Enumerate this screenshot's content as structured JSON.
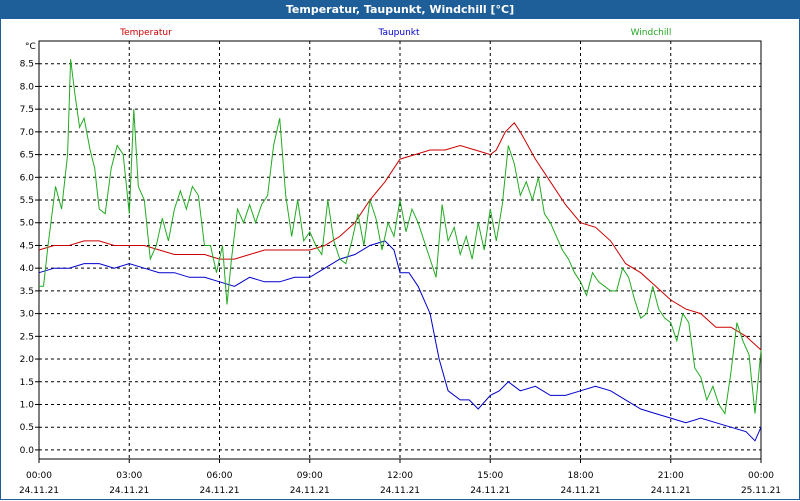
{
  "window": {
    "title": "Temperatur, Taupunkt, Windchill [°C]"
  },
  "chart_data": {
    "type": "line",
    "title": "Temperatur, Taupunkt, Windchill [°C]",
    "ylabel": "°C",
    "xlabel": "",
    "ylim": [
      -0.2,
      9.0
    ],
    "xlim": [
      0,
      24
    ],
    "grid": true,
    "yticks": [
      "0.0",
      "0.5",
      "1.0",
      "1.5",
      "2.0",
      "2.5",
      "3.0",
      "3.5",
      "4.0",
      "4.5",
      "5.0",
      "5.5",
      "6.0",
      "6.5",
      "7.0",
      "7.5",
      "8.0",
      "8.5"
    ],
    "xticks": [
      {
        "t": 0,
        "time": "00:00",
        "date": "24.11.21"
      },
      {
        "t": 3,
        "time": "03:00",
        "date": "24.11.21"
      },
      {
        "t": 6,
        "time": "06:00",
        "date": "24.11.21"
      },
      {
        "t": 9,
        "time": "09:00",
        "date": "24.11.21"
      },
      {
        "t": 12,
        "time": "12:00",
        "date": "24.11.21"
      },
      {
        "t": 15,
        "time": "15:00",
        "date": "24.11.21"
      },
      {
        "t": 18,
        "time": "18:00",
        "date": "24.11.21"
      },
      {
        "t": 21,
        "time": "21:00",
        "date": "24.11.21"
      },
      {
        "t": 24,
        "time": "00:00",
        "date": "25.11.21"
      }
    ],
    "series": [
      {
        "name": "Temperatur",
        "color": "#cc0000",
        "legend_pos": "left",
        "x": [
          0,
          0.5,
          1,
          1.5,
          2,
          2.5,
          3,
          3.5,
          4,
          4.5,
          5,
          5.5,
          6,
          6.5,
          7,
          7.5,
          8,
          8.5,
          9,
          9.5,
          10,
          10.5,
          11,
          11.5,
          12,
          12.5,
          13,
          13.5,
          14,
          14.5,
          15,
          15.2,
          15.5,
          15.8,
          16,
          16.5,
          17,
          17.5,
          18,
          18.5,
          19,
          19.5,
          20,
          20.5,
          21,
          21.5,
          22,
          22.5,
          23,
          23.5,
          24
        ],
        "values": [
          4.4,
          4.5,
          4.5,
          4.6,
          4.6,
          4.5,
          4.5,
          4.5,
          4.4,
          4.3,
          4.3,
          4.3,
          4.2,
          4.2,
          4.3,
          4.4,
          4.4,
          4.4,
          4.4,
          4.5,
          4.7,
          5.0,
          5.5,
          5.9,
          6.4,
          6.5,
          6.6,
          6.6,
          6.7,
          6.6,
          6.5,
          6.6,
          7.0,
          7.2,
          7.0,
          6.4,
          5.9,
          5.4,
          5.0,
          4.9,
          4.6,
          4.1,
          3.9,
          3.6,
          3.3,
          3.1,
          3.0,
          2.7,
          2.7,
          2.5,
          2.2
        ]
      },
      {
        "name": "Taupunkt",
        "color": "#0000cc",
        "legend_pos": "center",
        "x": [
          0,
          0.5,
          1,
          1.5,
          2,
          2.5,
          3,
          3.5,
          4,
          4.5,
          5,
          5.5,
          6,
          6.5,
          7,
          7.5,
          8,
          8.5,
          9,
          9.5,
          10,
          10.5,
          11,
          11.5,
          11.8,
          12,
          12.3,
          12.6,
          13,
          13.3,
          13.6,
          14,
          14.3,
          14.6,
          15,
          15.3,
          15.6,
          16,
          16.5,
          17,
          17.5,
          18,
          18.5,
          19,
          19.5,
          20,
          20.5,
          21,
          21.5,
          22,
          22.5,
          23,
          23.5,
          23.8,
          24
        ],
        "values": [
          3.9,
          4.0,
          4.0,
          4.1,
          4.1,
          4.0,
          4.1,
          4.0,
          3.9,
          3.9,
          3.8,
          3.8,
          3.7,
          3.6,
          3.8,
          3.7,
          3.7,
          3.8,
          3.8,
          4.0,
          4.2,
          4.3,
          4.5,
          4.6,
          4.4,
          3.9,
          3.9,
          3.6,
          3.0,
          2.0,
          1.3,
          1.1,
          1.1,
          0.9,
          1.2,
          1.3,
          1.5,
          1.3,
          1.4,
          1.2,
          1.2,
          1.3,
          1.4,
          1.3,
          1.1,
          0.9,
          0.8,
          0.7,
          0.6,
          0.7,
          0.6,
          0.5,
          0.4,
          0.2,
          0.5
        ]
      },
      {
        "name": "Windchill",
        "color": "#22aa22",
        "legend_pos": "right",
        "x": [
          0,
          0.15,
          0.3,
          0.55,
          0.75,
          0.95,
          1.05,
          1.2,
          1.35,
          1.5,
          1.7,
          1.85,
          2.0,
          2.2,
          2.4,
          2.6,
          2.8,
          3.0,
          3.15,
          3.3,
          3.5,
          3.7,
          3.9,
          4.1,
          4.3,
          4.5,
          4.7,
          4.9,
          5.1,
          5.3,
          5.5,
          5.7,
          5.9,
          6.1,
          6.25,
          6.4,
          6.6,
          6.8,
          7.0,
          7.2,
          7.4,
          7.6,
          7.8,
          8.0,
          8.2,
          8.4,
          8.6,
          8.8,
          9.0,
          9.2,
          9.4,
          9.6,
          9.8,
          10.0,
          10.2,
          10.4,
          10.6,
          10.8,
          11.0,
          11.2,
          11.4,
          11.6,
          11.8,
          12.0,
          12.2,
          12.4,
          12.6,
          12.8,
          13.0,
          13.2,
          13.4,
          13.6,
          13.8,
          14.0,
          14.2,
          14.4,
          14.6,
          14.8,
          15.0,
          15.2,
          15.4,
          15.6,
          15.8,
          16.0,
          16.2,
          16.4,
          16.6,
          16.8,
          17.0,
          17.2,
          17.4,
          17.6,
          17.8,
          18.0,
          18.2,
          18.4,
          18.6,
          18.8,
          19.0,
          19.2,
          19.4,
          19.6,
          19.8,
          20.0,
          20.2,
          20.4,
          20.6,
          20.8,
          21.0,
          21.2,
          21.4,
          21.6,
          21.8,
          22.0,
          22.2,
          22.4,
          22.6,
          22.8,
          23.0,
          23.2,
          23.4,
          23.6,
          23.8,
          24.0
        ],
        "values": [
          3.6,
          3.6,
          4.5,
          5.8,
          5.3,
          6.5,
          8.6,
          7.8,
          7.1,
          7.3,
          6.6,
          6.2,
          5.3,
          5.2,
          6.2,
          6.7,
          6.5,
          5.2,
          7.5,
          5.8,
          5.5,
          4.2,
          4.5,
          5.1,
          4.6,
          5.3,
          5.7,
          5.3,
          5.8,
          5.6,
          4.5,
          4.5,
          3.9,
          4.5,
          3.2,
          4.2,
          5.3,
          5.0,
          5.4,
          5.0,
          5.4,
          5.6,
          6.7,
          7.3,
          5.6,
          4.7,
          5.5,
          4.6,
          4.8,
          4.5,
          4.3,
          5.5,
          4.6,
          4.2,
          4.1,
          4.6,
          5.2,
          4.5,
          5.5,
          5.1,
          4.4,
          5.0,
          4.7,
          5.5,
          4.8,
          5.3,
          5.0,
          4.6,
          4.2,
          3.8,
          5.4,
          4.6,
          4.9,
          4.3,
          4.7,
          4.2,
          5.0,
          4.4,
          5.3,
          4.6,
          5.4,
          6.7,
          6.3,
          5.6,
          5.9,
          5.5,
          6.0,
          5.2,
          5.0,
          4.7,
          4.4,
          4.2,
          3.9,
          3.7,
          3.4,
          3.9,
          3.7,
          3.6,
          3.5,
          3.5,
          4.0,
          3.8,
          3.3,
          2.9,
          3.0,
          3.6,
          3.1,
          2.9,
          2.8,
          2.4,
          3.0,
          2.8,
          1.8,
          1.6,
          1.1,
          1.4,
          1.0,
          0.8,
          1.7,
          2.8,
          2.4,
          2.1,
          0.8,
          2.2
        ]
      }
    ]
  }
}
